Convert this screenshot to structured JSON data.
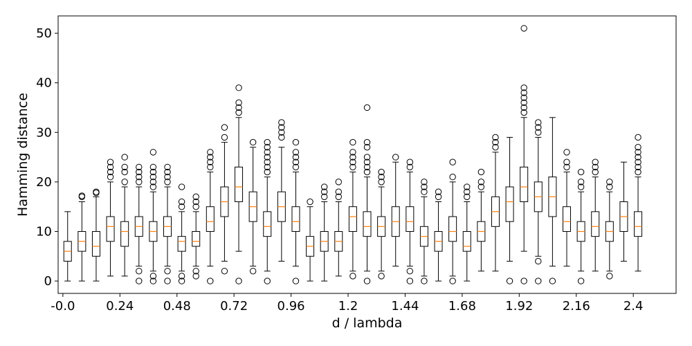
{
  "chart_data": {
    "type": "box",
    "xlabel": "d / lambda",
    "ylabel": "Hamming distance",
    "ylim": [
      -2.5,
      53.5
    ],
    "xlim": [
      -0.02,
      2.58
    ],
    "yticks": [
      0,
      10,
      20,
      30,
      40,
      50
    ],
    "xticks": [
      -0.0,
      0.24,
      0.48,
      0.72,
      0.96,
      1.2,
      1.44,
      1.68,
      1.92,
      2.16,
      2.4
    ],
    "xtick_labels": [
      "-0.0",
      "0.24",
      "0.48",
      "0.72",
      "0.96",
      "1.2",
      "1.44",
      "1.68",
      "1.92",
      "2.16",
      "2.4"
    ],
    "grid": false,
    "colors": {
      "median": "#ff7f0e",
      "box": "#000000"
    },
    "boxes": [
      {
        "x": 0.02,
        "whislo": 0,
        "q1": 4,
        "med": 6,
        "q3": 8,
        "whishi": 14,
        "fliers": []
      },
      {
        "x": 0.08,
        "whislo": 0,
        "q1": 6,
        "med": 8,
        "q3": 10,
        "whishi": 16,
        "fliers": [
          17,
          17.2
        ]
      },
      {
        "x": 0.14,
        "whislo": 0,
        "q1": 5,
        "med": 7,
        "q3": 10,
        "whishi": 17,
        "fliers": [
          17.8,
          18
        ]
      },
      {
        "x": 0.2,
        "whislo": 1,
        "q1": 8,
        "med": 11,
        "q3": 13,
        "whishi": 20,
        "fliers": [
          21,
          22,
          23,
          24
        ]
      },
      {
        "x": 0.26,
        "whislo": 1,
        "q1": 7,
        "med": 10,
        "q3": 12,
        "whishi": 19,
        "fliers": [
          20,
          22,
          23,
          25
        ]
      },
      {
        "x": 0.32,
        "whislo": 3,
        "q1": 9,
        "med": 11,
        "q3": 13,
        "whishi": 19,
        "fliers": [
          0,
          2,
          20,
          21,
          22,
          23
        ]
      },
      {
        "x": 0.38,
        "whislo": 2,
        "q1": 8,
        "med": 10,
        "q3": 12,
        "whishi": 18,
        "fliers": [
          0,
          1,
          19,
          20,
          21,
          22,
          23,
          26
        ]
      },
      {
        "x": 0.44,
        "whislo": 3,
        "q1": 9,
        "med": 11,
        "q3": 13,
        "whishi": 19,
        "fliers": [
          0,
          2,
          20,
          21,
          22,
          23
        ]
      },
      {
        "x": 0.5,
        "whislo": 2,
        "q1": 6,
        "med": 8,
        "q3": 9,
        "whishi": 14,
        "fliers": [
          0,
          1,
          15,
          16,
          19
        ]
      },
      {
        "x": 0.56,
        "whislo": 3,
        "q1": 7,
        "med": 8,
        "q3": 10,
        "whishi": 14,
        "fliers": [
          1,
          2,
          15,
          16,
          17
        ]
      },
      {
        "x": 0.62,
        "whislo": 3,
        "q1": 10,
        "med": 12,
        "q3": 15,
        "whishi": 22,
        "fliers": [
          0,
          23,
          24,
          25,
          26
        ]
      },
      {
        "x": 0.68,
        "whislo": 4,
        "q1": 13,
        "med": 16,
        "q3": 19,
        "whishi": 28,
        "fliers": [
          2,
          29,
          31
        ]
      },
      {
        "x": 0.74,
        "whislo": 6,
        "q1": 16,
        "med": 19,
        "q3": 23,
        "whishi": 33,
        "fliers": [
          0,
          34,
          35,
          36,
          39
        ]
      },
      {
        "x": 0.8,
        "whislo": 3,
        "q1": 12,
        "med": 15,
        "q3": 18,
        "whishi": 27,
        "fliers": [
          2,
          28
        ]
      },
      {
        "x": 0.86,
        "whislo": 2,
        "q1": 9,
        "med": 11,
        "q3": 14,
        "whishi": 21,
        "fliers": [
          0,
          22,
          23,
          24,
          25,
          26,
          27,
          28
        ]
      },
      {
        "x": 0.92,
        "whislo": 4,
        "q1": 12,
        "med": 15,
        "q3": 18,
        "whishi": 27,
        "fliers": [
          29,
          30,
          31,
          32
        ]
      },
      {
        "x": 0.98,
        "whislo": 3,
        "q1": 10,
        "med": 12,
        "q3": 15,
        "whishi": 22,
        "fliers": [
          0,
          23,
          24,
          25,
          26,
          28
        ]
      },
      {
        "x": 1.04,
        "whislo": 0,
        "q1": 5,
        "med": 7,
        "q3": 9,
        "whishi": 15,
        "fliers": [
          16
        ]
      },
      {
        "x": 1.1,
        "whislo": 0,
        "q1": 6,
        "med": 8,
        "q3": 10,
        "whishi": 16,
        "fliers": [
          17,
          18,
          19
        ]
      },
      {
        "x": 1.16,
        "whislo": 1,
        "q1": 6,
        "med": 8,
        "q3": 10,
        "whishi": 16,
        "fliers": [
          17,
          18,
          20
        ]
      },
      {
        "x": 1.22,
        "whislo": 2,
        "q1": 10,
        "med": 13,
        "q3": 15,
        "whishi": 22,
        "fliers": [
          1,
          23,
          24,
          25,
          26,
          28
        ]
      },
      {
        "x": 1.28,
        "whislo": 2,
        "q1": 9,
        "med": 11,
        "q3": 14,
        "whishi": 21,
        "fliers": [
          0,
          22,
          23,
          24,
          25,
          27,
          28,
          35
        ]
      },
      {
        "x": 1.34,
        "whislo": 2,
        "q1": 9,
        "med": 11,
        "q3": 13,
        "whishi": 19,
        "fliers": [
          1,
          20,
          21,
          22
        ]
      },
      {
        "x": 1.4,
        "whislo": 3,
        "q1": 9,
        "med": 12,
        "q3": 15,
        "whishi": 24,
        "fliers": [
          25
        ]
      },
      {
        "x": 1.46,
        "whislo": 3,
        "q1": 10,
        "med": 12,
        "q3": 15,
        "whishi": 22,
        "fliers": [
          0,
          2,
          23,
          24
        ]
      },
      {
        "x": 1.52,
        "whislo": 1,
        "q1": 7,
        "med": 9,
        "q3": 11,
        "whishi": 17,
        "fliers": [
          0,
          18,
          19,
          20
        ]
      },
      {
        "x": 1.58,
        "whislo": 0,
        "q1": 6,
        "med": 8,
        "q3": 10,
        "whishi": 16,
        "fliers": [
          17,
          18
        ]
      },
      {
        "x": 1.64,
        "whislo": 1,
        "q1": 8,
        "med": 10,
        "q3": 13,
        "whishi": 20,
        "fliers": [
          0,
          21,
          24
        ]
      },
      {
        "x": 1.7,
        "whislo": 0,
        "q1": 6,
        "med": 7,
        "q3": 10,
        "whishi": 16,
        "fliers": [
          17,
          18,
          19
        ]
      },
      {
        "x": 1.76,
        "whislo": 2,
        "q1": 8,
        "med": 10,
        "q3": 12,
        "whishi": 18,
        "fliers": [
          19,
          20,
          22
        ]
      },
      {
        "x": 1.82,
        "whislo": 2,
        "q1": 11,
        "med": 14,
        "q3": 17,
        "whishi": 26,
        "fliers": [
          27,
          28,
          29
        ]
      },
      {
        "x": 1.88,
        "whislo": 4,
        "q1": 12,
        "med": 16,
        "q3": 19,
        "whishi": 29,
        "fliers": [
          0
        ]
      },
      {
        "x": 1.94,
        "whislo": 6,
        "q1": 16,
        "med": 19,
        "q3": 23,
        "whishi": 33,
        "fliers": [
          0,
          34,
          35,
          36,
          37,
          38,
          39,
          51
        ]
      },
      {
        "x": 2.0,
        "whislo": 5,
        "q1": 14,
        "med": 17,
        "q3": 20,
        "whishi": 29,
        "fliers": [
          0,
          4,
          30,
          31,
          32
        ]
      },
      {
        "x": 2.06,
        "whislo": 3,
        "q1": 13,
        "med": 17,
        "q3": 21,
        "whishi": 33,
        "fliers": [
          0
        ]
      },
      {
        "x": 2.12,
        "whislo": 3,
        "q1": 10,
        "med": 12,
        "q3": 15,
        "whishi": 22,
        "fliers": [
          23,
          24,
          26
        ]
      },
      {
        "x": 2.18,
        "whislo": 2,
        "q1": 8,
        "med": 10,
        "q3": 12,
        "whishi": 18,
        "fliers": [
          0,
          19,
          20,
          22
        ]
      },
      {
        "x": 2.24,
        "whislo": 2,
        "q1": 9,
        "med": 11,
        "q3": 14,
        "whishi": 21,
        "fliers": [
          22,
          23,
          24
        ]
      },
      {
        "x": 2.3,
        "whislo": 2,
        "q1": 8,
        "med": 10,
        "q3": 12,
        "whishi": 18,
        "fliers": [
          1,
          19,
          20
        ]
      },
      {
        "x": 2.36,
        "whislo": 4,
        "q1": 10,
        "med": 13,
        "q3": 16,
        "whishi": 24,
        "fliers": []
      },
      {
        "x": 2.42,
        "whislo": 2,
        "q1": 9,
        "med": 11,
        "q3": 14,
        "whishi": 21,
        "fliers": [
          22,
          23,
          24,
          25,
          26,
          27,
          29
        ]
      }
    ]
  }
}
